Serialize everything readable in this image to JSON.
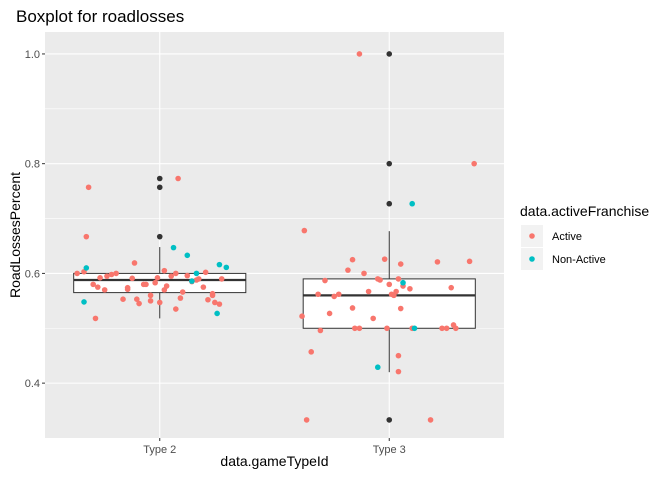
{
  "chart_data": {
    "type": "boxplot",
    "title": "Boxplot for roadlosses",
    "xlabel": "data.gameTypeId",
    "ylabel": "RoadLossesPercent",
    "categories": [
      "Type 2",
      "Type 3"
    ],
    "ylim": [
      0.3,
      1.04
    ],
    "yticks": [
      0.4,
      0.6,
      0.8,
      1.0
    ],
    "ytick_labels": [
      "0.4",
      "0.6",
      "0.8",
      "1.0"
    ],
    "grid": true,
    "legend": {
      "title": "data.activeFranchise",
      "placement": "right",
      "entries": [
        {
          "name": "Active",
          "color": "#F8766D"
        },
        {
          "name": "Non-Active",
          "color": "#00BFC4"
        }
      ]
    },
    "colors": {
      "panel": "#EBEBEB",
      "grid_major": "#FFFFFF",
      "outlier": "#333333",
      "box_fill": "#FFFFFF",
      "box_line": "#333333"
    },
    "boxes": [
      {
        "category": "Type 2",
        "whisker_low": 0.518,
        "q1": 0.565,
        "median": 0.588,
        "q3": 0.6,
        "whisker_high": 0.648,
        "outliers": [
          0.773,
          0.757,
          0.667
        ]
      },
      {
        "category": "Type 3",
        "whisker_low": 0.42,
        "q1": 0.5,
        "median": 0.56,
        "q3": 0.59,
        "whisker_high": 0.677,
        "outliers": [
          1.0,
          0.8,
          0.727,
          0.333
        ]
      }
    ],
    "series": [
      {
        "name": "Active",
        "points": [
          {
            "x": "Type 2",
            "jitter": -0.36,
            "y": 0.6
          },
          {
            "x": "Type 2",
            "jitter": -0.33,
            "y": 0.603
          },
          {
            "x": "Type 2",
            "jitter": -0.32,
            "y": 0.667
          },
          {
            "x": "Type 2",
            "jitter": -0.31,
            "y": 0.757
          },
          {
            "x": "Type 2",
            "jitter": -0.29,
            "y": 0.58
          },
          {
            "x": "Type 2",
            "jitter": -0.28,
            "y": 0.518
          },
          {
            "x": "Type 2",
            "jitter": -0.27,
            "y": 0.575
          },
          {
            "x": "Type 2",
            "jitter": -0.26,
            "y": 0.592
          },
          {
            "x": "Type 2",
            "jitter": -0.24,
            "y": 0.57
          },
          {
            "x": "Type 2",
            "jitter": -0.23,
            "y": 0.595
          },
          {
            "x": "Type 2",
            "jitter": -0.21,
            "y": 0.598
          },
          {
            "x": "Type 2",
            "jitter": -0.19,
            "y": 0.6
          },
          {
            "x": "Type 2",
            "jitter": -0.16,
            "y": 0.553
          },
          {
            "x": "Type 2",
            "jitter": -0.14,
            "y": 0.574
          },
          {
            "x": "Type 2",
            "jitter": -0.14,
            "y": 0.571
          },
          {
            "x": "Type 2",
            "jitter": -0.12,
            "y": 0.591
          },
          {
            "x": "Type 2",
            "jitter": -0.11,
            "y": 0.619
          },
          {
            "x": "Type 2",
            "jitter": -0.1,
            "y": 0.553
          },
          {
            "x": "Type 2",
            "jitter": -0.09,
            "y": 0.545
          },
          {
            "x": "Type 2",
            "jitter": -0.07,
            "y": 0.58
          },
          {
            "x": "Type 2",
            "jitter": -0.06,
            "y": 0.58
          },
          {
            "x": "Type 2",
            "jitter": -0.04,
            "y": 0.56
          },
          {
            "x": "Type 2",
            "jitter": -0.04,
            "y": 0.55
          },
          {
            "x": "Type 2",
            "jitter": -0.02,
            "y": 0.583
          },
          {
            "x": "Type 2",
            "jitter": -0.01,
            "y": 0.592
          },
          {
            "x": "Type 2",
            "jitter": 0.0,
            "y": 0.547
          },
          {
            "x": "Type 2",
            "jitter": 0.02,
            "y": 0.57
          },
          {
            "x": "Type 2",
            "jitter": 0.02,
            "y": 0.605
          },
          {
            "x": "Type 2",
            "jitter": 0.03,
            "y": 0.577
          },
          {
            "x": "Type 2",
            "jitter": 0.05,
            "y": 0.595
          },
          {
            "x": "Type 2",
            "jitter": 0.07,
            "y": 0.6
          },
          {
            "x": "Type 2",
            "jitter": 0.07,
            "y": 0.535
          },
          {
            "x": "Type 2",
            "jitter": 0.08,
            "y": 0.773
          },
          {
            "x": "Type 2",
            "jitter": 0.09,
            "y": 0.555
          },
          {
            "x": "Type 2",
            "jitter": 0.1,
            "y": 0.566
          },
          {
            "x": "Type 2",
            "jitter": 0.12,
            "y": 0.596
          },
          {
            "x": "Type 2",
            "jitter": 0.14,
            "y": 0.585
          },
          {
            "x": "Type 2",
            "jitter": 0.16,
            "y": 0.588
          },
          {
            "x": "Type 2",
            "jitter": 0.17,
            "y": 0.59
          },
          {
            "x": "Type 2",
            "jitter": 0.19,
            "y": 0.575
          },
          {
            "x": "Type 2",
            "jitter": 0.2,
            "y": 0.602
          },
          {
            "x": "Type 2",
            "jitter": 0.21,
            "y": 0.552
          },
          {
            "x": "Type 2",
            "jitter": 0.23,
            "y": 0.56
          },
          {
            "x": "Type 2",
            "jitter": 0.23,
            "y": 0.563
          },
          {
            "x": "Type 2",
            "jitter": 0.24,
            "y": 0.547
          },
          {
            "x": "Type 2",
            "jitter": 0.26,
            "y": 0.544
          },
          {
            "x": "Type 2",
            "jitter": 0.27,
            "y": 0.59
          },
          {
            "x": "Type 3",
            "jitter": -0.38,
            "y": 0.522
          },
          {
            "x": "Type 3",
            "jitter": -0.37,
            "y": 0.678
          },
          {
            "x": "Type 3",
            "jitter": -0.36,
            "y": 0.333
          },
          {
            "x": "Type 3",
            "jitter": -0.34,
            "y": 0.457
          },
          {
            "x": "Type 3",
            "jitter": -0.31,
            "y": 0.562
          },
          {
            "x": "Type 3",
            "jitter": -0.3,
            "y": 0.496
          },
          {
            "x": "Type 3",
            "jitter": -0.28,
            "y": 0.587
          },
          {
            "x": "Type 3",
            "jitter": -0.26,
            "y": 0.527
          },
          {
            "x": "Type 3",
            "jitter": -0.24,
            "y": 0.558
          },
          {
            "x": "Type 3",
            "jitter": -0.22,
            "y": 0.562
          },
          {
            "x": "Type 3",
            "jitter": -0.18,
            "y": 0.606
          },
          {
            "x": "Type 3",
            "jitter": -0.16,
            "y": 0.625
          },
          {
            "x": "Type 3",
            "jitter": -0.16,
            "y": 0.537
          },
          {
            "x": "Type 3",
            "jitter": -0.15,
            "y": 0.5
          },
          {
            "x": "Type 3",
            "jitter": -0.13,
            "y": 1.0
          },
          {
            "x": "Type 3",
            "jitter": -0.13,
            "y": 0.5
          },
          {
            "x": "Type 3",
            "jitter": -0.11,
            "y": 0.6
          },
          {
            "x": "Type 3",
            "jitter": -0.09,
            "y": 0.567
          },
          {
            "x": "Type 3",
            "jitter": -0.07,
            "y": 0.518
          },
          {
            "x": "Type 3",
            "jitter": -0.05,
            "y": 0.59
          },
          {
            "x": "Type 3",
            "jitter": -0.04,
            "y": 0.588
          },
          {
            "x": "Type 3",
            "jitter": -0.02,
            "y": 0.626
          },
          {
            "x": "Type 3",
            "jitter": -0.01,
            "y": 0.5
          },
          {
            "x": "Type 3",
            "jitter": 0.0,
            "y": 0.58
          },
          {
            "x": "Type 3",
            "jitter": 0.01,
            "y": 0.562
          },
          {
            "x": "Type 3",
            "jitter": 0.02,
            "y": 0.56
          },
          {
            "x": "Type 3",
            "jitter": 0.03,
            "y": 0.567
          },
          {
            "x": "Type 3",
            "jitter": 0.04,
            "y": 0.59
          },
          {
            "x": "Type 3",
            "jitter": 0.04,
            "y": 0.45
          },
          {
            "x": "Type 3",
            "jitter": 0.04,
            "y": 0.421
          },
          {
            "x": "Type 3",
            "jitter": 0.05,
            "y": 0.617
          },
          {
            "x": "Type 3",
            "jitter": 0.05,
            "y": 0.536
          },
          {
            "x": "Type 3",
            "jitter": 0.06,
            "y": 0.577
          },
          {
            "x": "Type 3",
            "jitter": 0.09,
            "y": 0.572
          },
          {
            "x": "Type 3",
            "jitter": 0.1,
            "y": 0.5
          },
          {
            "x": "Type 3",
            "jitter": 0.18,
            "y": 0.333
          },
          {
            "x": "Type 3",
            "jitter": 0.21,
            "y": 0.621
          },
          {
            "x": "Type 3",
            "jitter": 0.23,
            "y": 0.5
          },
          {
            "x": "Type 3",
            "jitter": 0.25,
            "y": 0.5
          },
          {
            "x": "Type 3",
            "jitter": 0.27,
            "y": 0.574
          },
          {
            "x": "Type 3",
            "jitter": 0.28,
            "y": 0.506
          },
          {
            "x": "Type 3",
            "jitter": 0.29,
            "y": 0.5
          },
          {
            "x": "Type 3",
            "jitter": 0.35,
            "y": 0.622
          },
          {
            "x": "Type 3",
            "jitter": 0.37,
            "y": 0.8
          }
        ]
      },
      {
        "name": "Non-Active",
        "points": [
          {
            "x": "Type 2",
            "jitter": -0.33,
            "y": 0.548
          },
          {
            "x": "Type 2",
            "jitter": -0.32,
            "y": 0.61
          },
          {
            "x": "Type 2",
            "jitter": 0.06,
            "y": 0.647
          },
          {
            "x": "Type 2",
            "jitter": 0.12,
            "y": 0.633
          },
          {
            "x": "Type 2",
            "jitter": 0.14,
            "y": 0.586
          },
          {
            "x": "Type 2",
            "jitter": 0.16,
            "y": 0.6
          },
          {
            "x": "Type 2",
            "jitter": 0.25,
            "y": 0.527
          },
          {
            "x": "Type 2",
            "jitter": 0.26,
            "y": 0.616
          },
          {
            "x": "Type 2",
            "jitter": 0.29,
            "y": 0.611
          },
          {
            "x": "Type 3",
            "jitter": -0.05,
            "y": 0.429
          },
          {
            "x": "Type 3",
            "jitter": 0.06,
            "y": 0.583
          },
          {
            "x": "Type 3",
            "jitter": 0.1,
            "y": 0.727
          },
          {
            "x": "Type 3",
            "jitter": 0.11,
            "y": 0.5
          }
        ]
      }
    ]
  }
}
